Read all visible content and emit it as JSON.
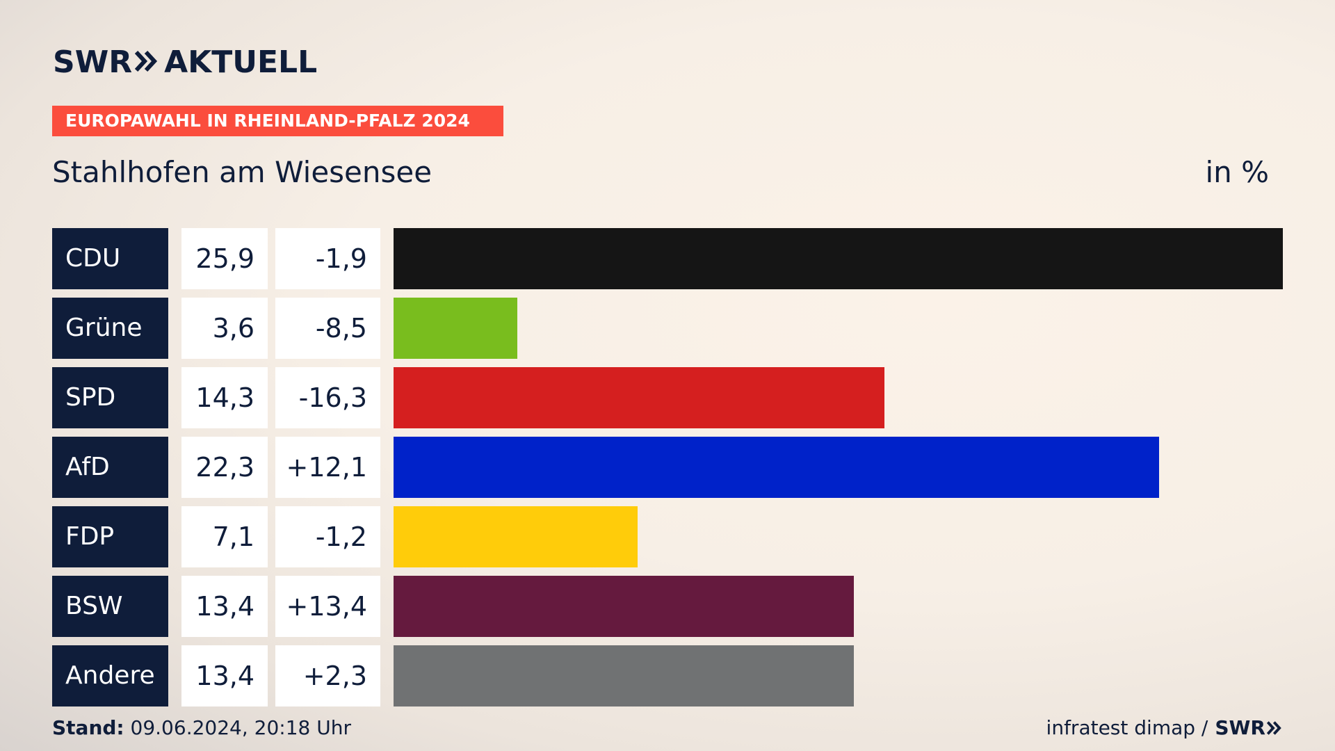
{
  "brand": {
    "logo_left": "SWR",
    "logo_right": "AKTUELL",
    "navy": "#0f1d3a",
    "accent": "#fb4d3d"
  },
  "header": {
    "tag": "EUROPAWAHL IN RHEINLAND-PFALZ 2024",
    "region": "Stahlhofen am Wiesensee",
    "unit": "in %"
  },
  "chart_data": {
    "type": "bar",
    "orientation": "horizontal",
    "categories": [
      "CDU",
      "Grüne",
      "SPD",
      "AfD",
      "FDP",
      "BSW",
      "Andere"
    ],
    "values": [
      25.9,
      3.6,
      14.3,
      22.3,
      7.1,
      13.4,
      13.4
    ],
    "value_labels": [
      "25,9",
      "3,6",
      "14,3",
      "22,3",
      "7,1",
      "13,4",
      "13,4"
    ],
    "changes": [
      "-1,9",
      "-8,5",
      "-16,3",
      "+12,1",
      "-1,2",
      "+13,4",
      "+2,3"
    ],
    "colors": [
      "#151515",
      "#79bd1e",
      "#d51f1f",
      "#0022c9",
      "#ffcc0a",
      "#651a3e",
      "#707273"
    ],
    "xlim": [
      0,
      25.9
    ],
    "grid": false,
    "legend": "none"
  },
  "footer": {
    "stand_label": "Stand:",
    "stand_value": "09.06.2024, 20:18 Uhr",
    "source": "infratest dimap /",
    "source_logo": "SWR"
  }
}
